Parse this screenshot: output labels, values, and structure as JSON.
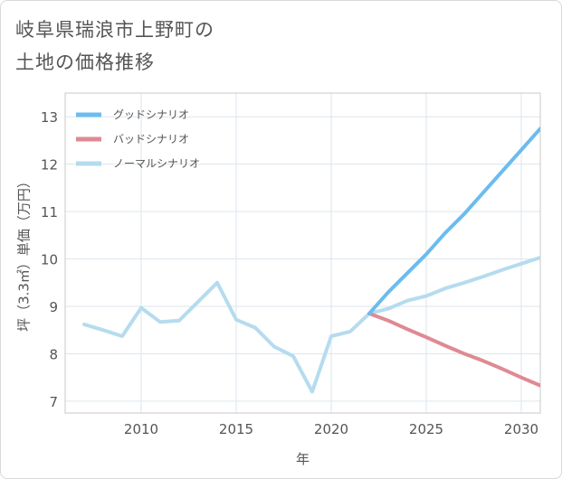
{
  "page_title_line1": "岐阜県瑞浪市上野町の",
  "page_title_line2": "土地の価格推移",
  "chart_data": {
    "type": "line",
    "xlabel": "年",
    "ylabel": "坪（3.3㎡）単価（万円）",
    "xlim": [
      2006,
      2031
    ],
    "ylim": [
      6.75,
      13.5
    ],
    "x_ticks": [
      2010,
      2015,
      2020,
      2025,
      2030
    ],
    "y_ticks": [
      7,
      8,
      9,
      10,
      11,
      12,
      13
    ],
    "grid": true,
    "legend_position": "top-left",
    "series": [
      {
        "name": "グッドシナリオ",
        "color": "#6bbcef",
        "points": [
          [
            2022,
            8.85
          ],
          [
            2023,
            9.3
          ],
          [
            2024,
            9.7
          ],
          [
            2025,
            10.1
          ],
          [
            2026,
            10.55
          ],
          [
            2027,
            10.95
          ],
          [
            2028,
            11.4
          ],
          [
            2029,
            11.85
          ],
          [
            2030,
            12.3
          ],
          [
            2031,
            12.75
          ]
        ]
      },
      {
        "name": "バッドシナリオ",
        "color": "#df8a93",
        "points": [
          [
            2022,
            8.85
          ],
          [
            2023,
            8.7
          ],
          [
            2024,
            8.52
          ],
          [
            2025,
            8.35
          ],
          [
            2026,
            8.17
          ],
          [
            2027,
            8.0
          ],
          [
            2028,
            7.85
          ],
          [
            2029,
            7.68
          ],
          [
            2030,
            7.5
          ],
          [
            2031,
            7.33
          ]
        ]
      },
      {
        "name": "ノーマルシナリオ",
        "color": "#b5dcee",
        "points": [
          [
            2007,
            8.62
          ],
          [
            2008,
            8.5
          ],
          [
            2009,
            8.37
          ],
          [
            2010,
            8.97
          ],
          [
            2011,
            8.67
          ],
          [
            2012,
            8.7
          ],
          [
            2013,
            9.1
          ],
          [
            2014,
            9.5
          ],
          [
            2015,
            8.72
          ],
          [
            2016,
            8.55
          ],
          [
            2017,
            8.15
          ],
          [
            2018,
            7.95
          ],
          [
            2019,
            7.2
          ],
          [
            2020,
            8.37
          ],
          [
            2021,
            8.47
          ],
          [
            2022,
            8.85
          ],
          [
            2023,
            8.95
          ],
          [
            2024,
            9.12
          ],
          [
            2025,
            9.22
          ],
          [
            2026,
            9.38
          ],
          [
            2027,
            9.5
          ],
          [
            2028,
            9.63
          ],
          [
            2029,
            9.77
          ],
          [
            2030,
            9.9
          ],
          [
            2031,
            10.03
          ]
        ]
      }
    ]
  }
}
